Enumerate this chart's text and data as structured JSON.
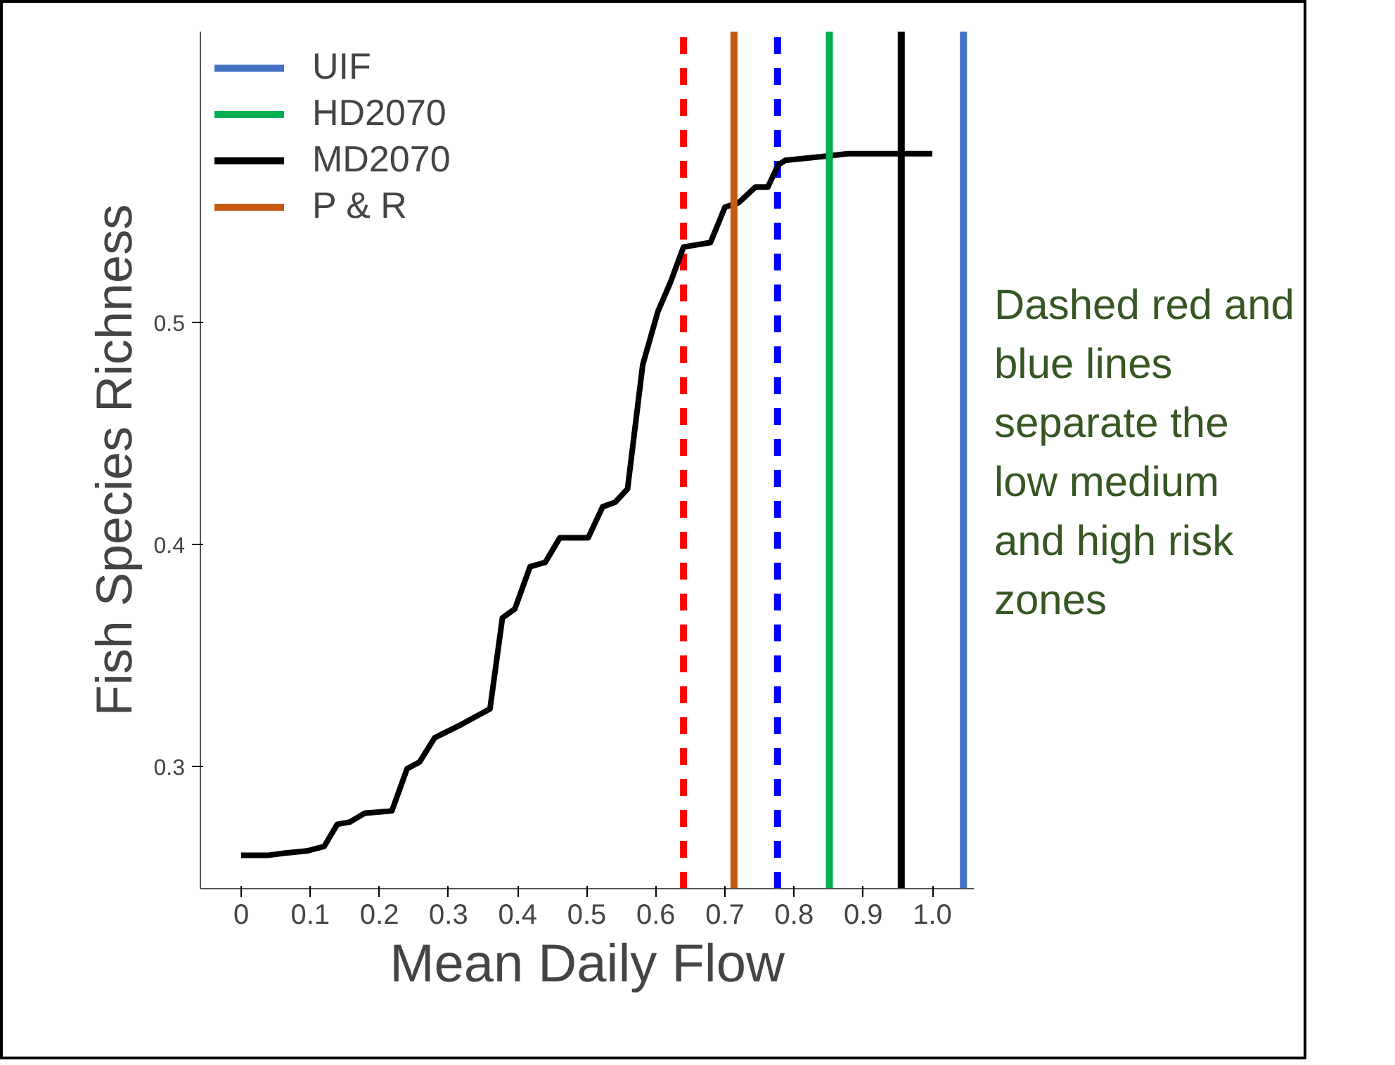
{
  "chart_data": {
    "type": "line",
    "xlabel": "Mean Daily Flow",
    "ylabel": "Fish Species Richness",
    "x": [
      0,
      0.038,
      0.062,
      0.095,
      0.12,
      0.139,
      0.157,
      0.179,
      0.218,
      0.24,
      0.258,
      0.28,
      0.319,
      0.36,
      0.378,
      0.396,
      0.418,
      0.44,
      0.461,
      0.502,
      0.523,
      0.541,
      0.559,
      0.581,
      0.603,
      0.621,
      0.64,
      0.679,
      0.7,
      0.72,
      0.744,
      0.762,
      0.777,
      0.787,
      0.849,
      0.878,
      1.0
    ],
    "series": [
      {
        "color": "#000000",
        "values": [
          0.26,
          0.26,
          0.261,
          0.262,
          0.264,
          0.274,
          0.275,
          0.279,
          0.28,
          0.299,
          0.302,
          0.313,
          0.319,
          0.326,
          0.367,
          0.371,
          0.39,
          0.392,
          0.403,
          0.403,
          0.417,
          0.419,
          0.425,
          0.481,
          0.505,
          0.518,
          0.534,
          0.536,
          0.552,
          0.554,
          0.561,
          0.561,
          0.571,
          0.573,
          0.575,
          0.576,
          0.576
        ]
      },
      {
        "name": "UIF",
        "color": "#4472c4",
        "x": [
          1.045,
          1.045
        ],
        "values": [
          0.245,
          0.631
        ]
      },
      {
        "name": "HD2070",
        "color": "#00b050",
        "x": [
          0.851,
          0.851
        ],
        "values": [
          0.245,
          0.631
        ]
      },
      {
        "name": "MD2070",
        "color": "#000000",
        "x": [
          0.955,
          0.955
        ],
        "values": [
          0.245,
          0.631
        ]
      },
      {
        "name": "P & R",
        "color": "#c55a11",
        "x": [
          0.713,
          0.713
        ],
        "values": [
          0.245,
          0.631
        ]
      }
    ],
    "xlim": [
      -0.059,
      1.06
    ],
    "ylim": [
      0.245,
      0.631
    ],
    "xticks": [
      0,
      0.1,
      0.2,
      0.3,
      0.4,
      0.5,
      0.6,
      0.7,
      0.8,
      0.9,
      {
        "value": 1,
        "label": "1.0"
      }
    ],
    "yticks": [
      0.3,
      0.4,
      0.5
    ],
    "ref_lines": [
      {
        "axis": "x",
        "value": 0.64,
        "color": "#ff0000",
        "line_style": "dashed"
      },
      {
        "axis": "x",
        "value": 0.776,
        "color": "#0000ff",
        "line_style": "dashed"
      }
    ],
    "legend": "top left",
    "grid": false,
    "line_style": "solid",
    "marker": "none",
    "annotations": [
      "Dashed red and blue lines separate  the low medium and high risk zones"
    ]
  }
}
